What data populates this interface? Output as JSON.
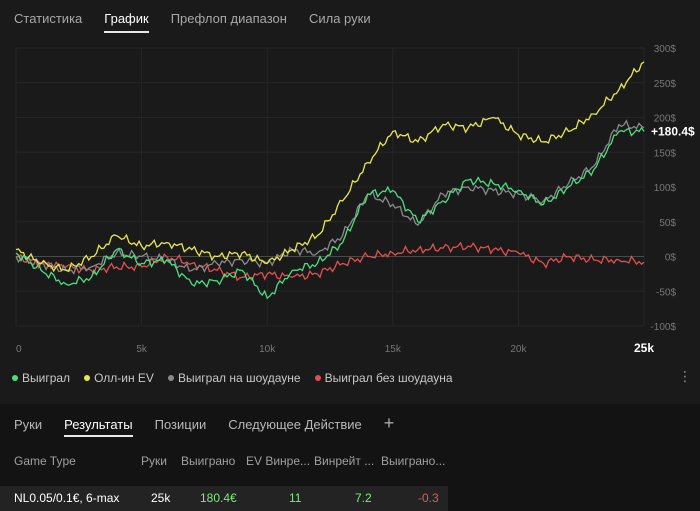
{
  "top_tabs": [
    {
      "label": "Статистика",
      "active": false
    },
    {
      "label": "График",
      "active": true
    },
    {
      "label": "Префлоп диапазон",
      "active": false
    },
    {
      "label": "Сила руки",
      "active": false
    }
  ],
  "chart_data": {
    "type": "line",
    "x_ticks": [
      "0",
      "5k",
      "10k",
      "15k",
      "20k",
      "25k"
    ],
    "x_tick_values": [
      0,
      5000,
      10000,
      15000,
      20000,
      25000
    ],
    "xlim": [
      0,
      25000
    ],
    "y_ticks": [
      "300$",
      "250$",
      "200$",
      "150$",
      "100$",
      "50$",
      "0$",
      "-50$",
      "-100$"
    ],
    "y_tick_values": [
      300,
      250,
      200,
      150,
      100,
      50,
      0,
      -50,
      -100
    ],
    "ylim": [
      -100,
      300
    ],
    "end_label": "+180.4$",
    "grid": true,
    "series": [
      {
        "name": "Выиграл",
        "color": "#4ade80",
        "x": [
          0,
          1000,
          2000,
          3000,
          4000,
          5000,
          6000,
          7000,
          8000,
          9000,
          10000,
          11000,
          12000,
          13000,
          14000,
          15000,
          16000,
          17000,
          18000,
          19000,
          20000,
          21000,
          22000,
          23000,
          24000,
          25000
        ],
        "y": [
          5,
          -20,
          -40,
          -30,
          10,
          -10,
          -5,
          -40,
          -35,
          -20,
          -60,
          -20,
          -10,
          20,
          90,
          95,
          50,
          80,
          110,
          105,
          95,
          75,
          100,
          125,
          180,
          180
        ]
      },
      {
        "name": "Олл-ин EV",
        "color": "#e8e84a",
        "x": [
          0,
          1000,
          2000,
          3000,
          4000,
          5000,
          6000,
          7000,
          8000,
          9000,
          10000,
          11000,
          12000,
          13000,
          14000,
          15000,
          16000,
          17000,
          18000,
          19000,
          20000,
          21000,
          22000,
          23000,
          24000,
          25000
        ],
        "y": [
          10,
          -10,
          -20,
          0,
          30,
          15,
          20,
          10,
          0,
          5,
          -10,
          10,
          30,
          80,
          135,
          180,
          165,
          190,
          185,
          200,
          175,
          165,
          180,
          205,
          240,
          280
        ]
      },
      {
        "name": "Выиграл на шоудауне",
        "color": "#8a8a8a",
        "x": [
          0,
          1000,
          2000,
          3000,
          4000,
          5000,
          6000,
          7000,
          8000,
          9000,
          10000,
          11000,
          12000,
          13000,
          14000,
          15000,
          16000,
          17000,
          18000,
          19000,
          20000,
          21000,
          22000,
          23000,
          24000,
          25000
        ],
        "y": [
          0,
          -10,
          -20,
          -15,
          5,
          0,
          -5,
          -20,
          -10,
          -5,
          -10,
          10,
          5,
          30,
          90,
          75,
          45,
          90,
          100,
          95,
          90,
          80,
          105,
          130,
          190,
          185
        ]
      },
      {
        "name": "Выиграл без шоудауна",
        "color": "#e05050",
        "x": [
          0,
          1000,
          2000,
          3000,
          4000,
          5000,
          6000,
          7000,
          8000,
          9000,
          10000,
          11000,
          12000,
          13000,
          14000,
          15000,
          16000,
          17000,
          18000,
          19000,
          20000,
          21000,
          22000,
          23000,
          24000,
          25000
        ],
        "y": [
          0,
          -10,
          -15,
          -20,
          -15,
          -15,
          0,
          -10,
          -20,
          -30,
          -25,
          -30,
          -25,
          -10,
          0,
          5,
          10,
          12,
          15,
          10,
          5,
          -10,
          0,
          -5,
          -5,
          -8
        ]
      }
    ]
  },
  "more_icon": "more-vertical-icon",
  "bottom_tabs": [
    {
      "label": "Руки",
      "active": false
    },
    {
      "label": "Результаты",
      "active": true
    },
    {
      "label": "Позиции",
      "active": false
    },
    {
      "label": "Следующее Действие",
      "active": false
    }
  ],
  "add_tab_label": "+",
  "table": {
    "headers": [
      "Game Type",
      "Руки",
      "Выиграно",
      "EV Винре...",
      "Винрейт ...",
      "Выиграно..."
    ],
    "row": [
      "NL0.05/0.1€, 6-max",
      "25k",
      "180.4€",
      "11",
      "7.2",
      "-0.3"
    ],
    "colors": {
      "green": "#7ee87e",
      "red": "#e05a5a",
      "white": "#ffffff"
    }
  }
}
